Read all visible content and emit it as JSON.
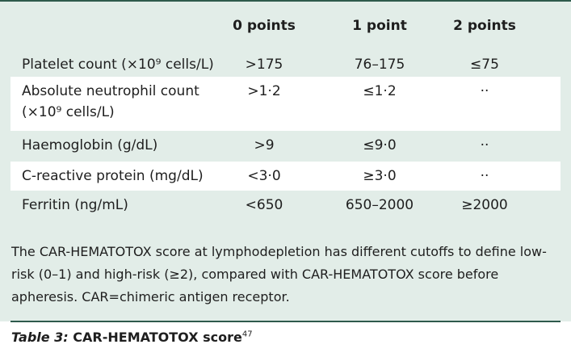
{
  "table": {
    "header": [
      "0 points",
      "1 point",
      "2 points"
    ],
    "rows": [
      {
        "label": "Platelet count (×10⁹ cells/L)",
        "cells": [
          ">175",
          "76–175",
          "≤75"
        ]
      },
      {
        "label": "Absolute neutrophil count (×10⁹ cells/L)",
        "cells": [
          ">1·2",
          "≤1·2",
          "··"
        ]
      },
      {
        "label": "Haemoglobin (g/dL)",
        "cells": [
          ">9",
          "≤9·0",
          "··"
        ]
      },
      {
        "label": "C-reactive protein (mg/dL)",
        "cells": [
          "<3·0",
          "≥3·0",
          "··"
        ]
      },
      {
        "label": "Ferritin (ng/mL)",
        "cells": [
          "<650",
          "650–2000",
          "≥2000"
        ]
      }
    ]
  },
  "footnote": "The CAR-HEMATOTOX score at lymphodepletion has different cutoffs to define low-risk (0–1) and high-risk (≥2), compared with CAR-HEMATOTOX score before apheresis. CAR=chimeric antigen receptor.",
  "caption": {
    "label": "Table 3:",
    "title": "CAR-HEMATOTOX score",
    "ref": "47"
  }
}
